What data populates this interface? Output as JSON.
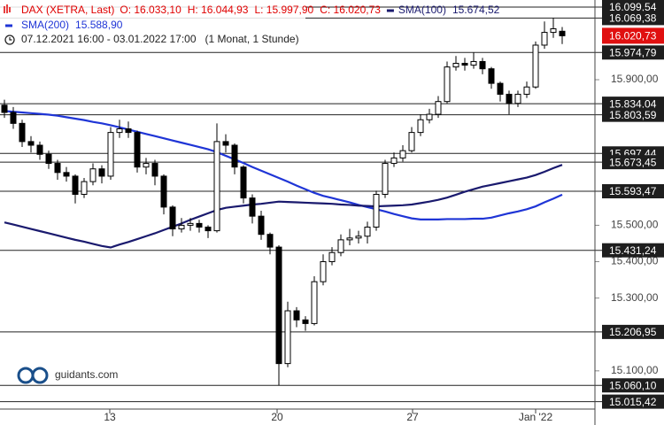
{
  "chart_data": {
    "type": "candlestick",
    "header": {
      "ohlc": [
        "O: 16.033,10",
        "H: 16.044,93",
        "L: 15.997,90",
        "C: 16.020,73"
      ],
      "date_range": "07.12.2021 16:00 - 03.01.2022 17:00",
      "period": "(1 Monat, 1 Stunde)"
    },
    "brand": "guidants.com",
    "xlim": [
      -0.5,
      66.7
    ],
    "xticks": [
      {
        "value": 11.9,
        "label": "13"
      },
      {
        "value": 30.8,
        "label": "20"
      },
      {
        "value": 46.1,
        "label": "27"
      },
      {
        "value": 60,
        "label": "Jan '22"
      }
    ],
    "ylim": [
      14995,
      16119
    ],
    "yticks": [
      {
        "value": 15100,
        "label": "15.100,00"
      },
      {
        "value": 15300,
        "label": "15.300,00"
      },
      {
        "value": 15400,
        "label": "15.400,00"
      },
      {
        "value": 15500,
        "label": "15.500,00"
      },
      {
        "value": 15900,
        "label": "15.900,00"
      }
    ],
    "series": [
      {
        "name": "DAX (XETRA, Last)",
        "color": "#e00000",
        "open": [
          15830,
          15810,
          15780,
          15730,
          15720,
          15695,
          15670,
          15645,
          15635,
          15585,
          15620,
          15655,
          15635,
          15755,
          15765,
          15755,
          15660,
          15670,
          15635,
          15550,
          15490,
          15500,
          15505,
          15495,
          15485,
          15730,
          15720,
          15660,
          15575,
          15525,
          15475,
          15440,
          15120,
          15265,
          15240,
          15230,
          15345,
          15400,
          15425,
          15460,
          15465,
          15470,
          15495,
          15585,
          15670,
          15685,
          15705,
          15755,
          15790,
          15805,
          15840,
          15935,
          15945,
          15940,
          15950,
          15930,
          15890,
          15860,
          15835,
          15860,
          15880,
          15995,
          16030,
          16033.1
        ],
        "high": [
          15845,
          15825,
          15790,
          15745,
          15730,
          15705,
          15680,
          15660,
          15640,
          15630,
          15670,
          15665,
          15770,
          15790,
          15785,
          15760,
          15685,
          15680,
          15640,
          15555,
          15520,
          15520,
          15515,
          15500,
          15780,
          15750,
          15725,
          15665,
          15585,
          15540,
          15480,
          15445,
          15290,
          15275,
          15250,
          15360,
          15420,
          15440,
          15475,
          15490,
          15485,
          15510,
          15595,
          15680,
          15700,
          15720,
          15770,
          15805,
          15820,
          15855,
          15950,
          15965,
          15960,
          15975,
          15960,
          15935,
          15895,
          15870,
          15870,
          15895,
          16005,
          16060,
          16069.38,
          16044.93
        ],
        "low": [
          15795,
          15765,
          15715,
          15700,
          15680,
          15655,
          15625,
          15620,
          15560,
          15575,
          15610,
          15615,
          15625,
          15740,
          15740,
          15645,
          15640,
          15610,
          15530,
          15470,
          15480,
          15485,
          15480,
          15465,
          15480,
          15700,
          15640,
          15560,
          15505,
          15460,
          15420,
          15060,
          15110,
          15220,
          15210,
          15225,
          15335,
          15390,
          15415,
          15445,
          15450,
          15450,
          15485,
          15575,
          15660,
          15675,
          15700,
          15745,
          15780,
          15795,
          15835,
          15925,
          15925,
          15930,
          15915,
          15875,
          15840,
          15805,
          15825,
          15850,
          15875,
          15985,
          16015,
          15997.9
        ],
        "close": [
          15810,
          15780,
          15730,
          15720,
          15695,
          15670,
          15645,
          15635,
          15585,
          15620,
          15655,
          15635,
          15755,
          15765,
          15755,
          15660,
          15670,
          15635,
          15550,
          15490,
          15500,
          15505,
          15495,
          15485,
          15730,
          15720,
          15660,
          15575,
          15525,
          15475,
          15440,
          15120,
          15265,
          15240,
          15230,
          15345,
          15400,
          15425,
          15460,
          15465,
          15470,
          15495,
          15585,
          15670,
          15685,
          15705,
          15755,
          15790,
          15805,
          15840,
          15935,
          15945,
          15940,
          15950,
          15930,
          15890,
          15860,
          15835,
          15860,
          15880,
          15995,
          16030,
          16040,
          16020.73
        ],
        "last": {
          "value": 16020.73,
          "label": "16.020,73"
        }
      },
      {
        "name": "SMA(100)",
        "color": "#1a1a6e",
        "last_label": "15.674,52",
        "values": [
          15508,
          15502,
          15496,
          15490,
          15484,
          15478,
          15472,
          15466,
          15460,
          15455,
          15449,
          15443,
          15439,
          15447,
          15454,
          15462,
          15470,
          15478,
          15487,
          15496,
          15505,
          15515,
          15524,
          15533,
          15542,
          15548,
          15551,
          15554,
          15557,
          15559,
          15562,
          15565,
          15564,
          15563,
          15562,
          15561,
          15560,
          15559,
          15557,
          15556,
          15554,
          15553,
          15552,
          15553,
          15554,
          15555,
          15557,
          15561,
          15565,
          15570,
          15576,
          15584,
          15592,
          15599,
          15606,
          15611,
          15616,
          15621,
          15626,
          15631,
          15638,
          15647,
          15657,
          15666
        ]
      },
      {
        "name": "SMA(200)",
        "color": "#1f35d6",
        "last_label": "15.588,90",
        "values": [
          15814,
          15812,
          15810,
          15808,
          15806,
          15804,
          15801,
          15797,
          15793,
          15789,
          15784,
          15780,
          15775,
          15769,
          15763,
          15757,
          15751,
          15745,
          15739,
          15733,
          15727,
          15721,
          15715,
          15709,
          15701,
          15691,
          15681,
          15671,
          15660,
          15650,
          15640,
          15630,
          15620,
          15609,
          15599,
          15589,
          15581,
          15575,
          15569,
          15563,
          15556,
          15550,
          15544,
          15538,
          15531,
          15525,
          15519,
          15516,
          15516,
          15516,
          15517,
          15517,
          15517,
          15518,
          15518,
          15521,
          15527,
          15533,
          15538,
          15544,
          15552,
          15563,
          15573,
          15584
        ]
      }
    ],
    "levels": [
      {
        "value": 16099.54,
        "label": "16.099,54"
      },
      {
        "value": 16069.38,
        "label": "16.069,38"
      },
      {
        "value": 15974.79,
        "label": "15.974,79"
      },
      {
        "value": 15834.04,
        "label": "15.834,04"
      },
      {
        "value": 15803.59,
        "label": "15.803,59"
      },
      {
        "value": 15697.44,
        "label": "15.697,44"
      },
      {
        "value": 15673.45,
        "label": "15.673,45"
      },
      {
        "value": 15593.47,
        "label": "15.593,47"
      },
      {
        "value": 15431.24,
        "label": "15.431,24"
      },
      {
        "value": 15206.95,
        "label": "15.206,95"
      },
      {
        "value": 15060.1,
        "label": "15.060,10"
      },
      {
        "value": 15015.42,
        "label": "15.015,42"
      }
    ]
  }
}
